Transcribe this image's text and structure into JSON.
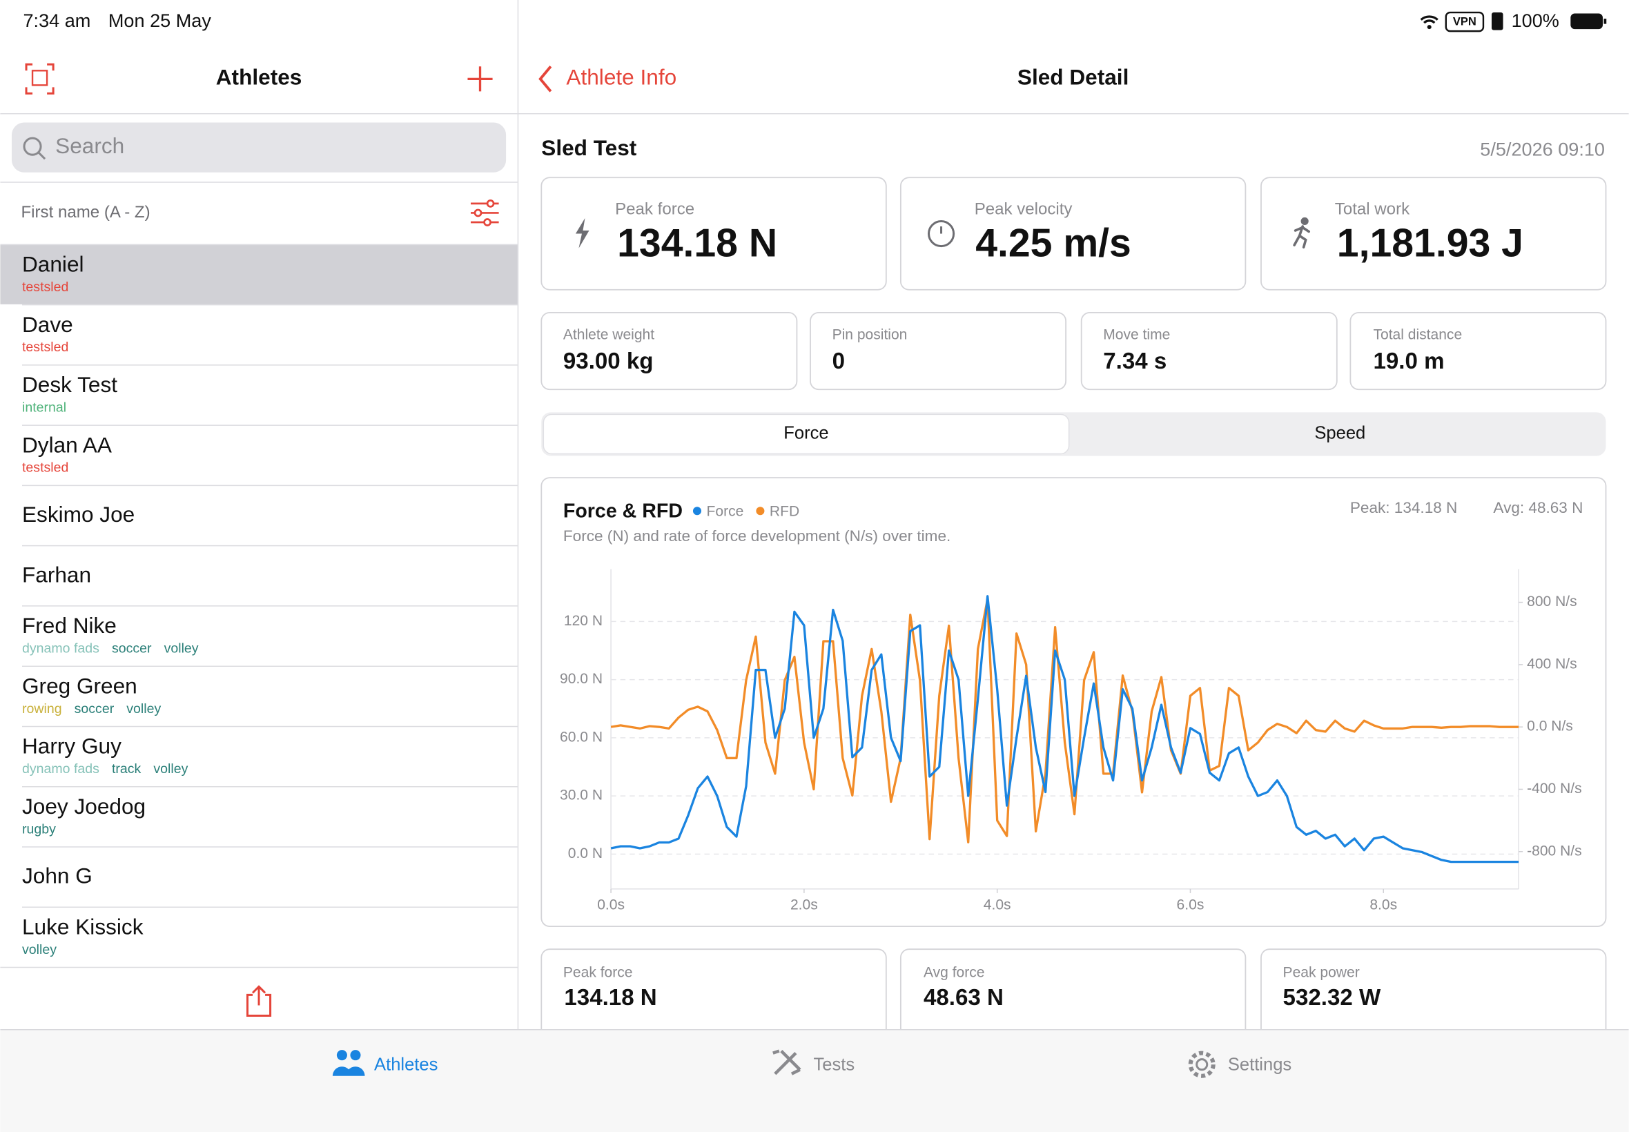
{
  "status_bar": {
    "time": "7:34 am",
    "date": "Mon 25 May",
    "vpn": "VPN",
    "battery": "100%"
  },
  "sidebar": {
    "title": "Athletes",
    "search_placeholder": "Search",
    "sort": "First name (A - Z)",
    "athletes": [
      {
        "name": "Daniel",
        "tags": [
          {
            "text": "testsled",
            "color": "#e5453a"
          }
        ]
      },
      {
        "name": "Dave",
        "tags": [
          {
            "text": "testsled",
            "color": "#e5453a"
          }
        ]
      },
      {
        "name": "Desk Test",
        "tags": [
          {
            "text": "internal",
            "color": "#4fb37a"
          }
        ]
      },
      {
        "name": "Dylan AA",
        "tags": [
          {
            "text": "testsled",
            "color": "#e5453a"
          }
        ]
      },
      {
        "name": "Eskimo Joe",
        "tags": []
      },
      {
        "name": "Farhan",
        "tags": []
      },
      {
        "name": "Fred Nike",
        "tags": [
          {
            "text": "dynamo fads",
            "color": "#86c2b8"
          },
          {
            "text": "soccer",
            "color": "#2a7f78"
          },
          {
            "text": "volley",
            "color": "#2a7f78"
          }
        ]
      },
      {
        "name": "Greg Green",
        "tags": [
          {
            "text": "rowing",
            "color": "#c9b13b"
          },
          {
            "text": "soccer",
            "color": "#2a7f78"
          },
          {
            "text": "volley",
            "color": "#2a7f78"
          }
        ]
      },
      {
        "name": "Harry Guy",
        "tags": [
          {
            "text": "dynamo fads",
            "color": "#86c2b8"
          },
          {
            "text": "track",
            "color": "#2a7f78"
          },
          {
            "text": "volley",
            "color": "#2a7f78"
          }
        ]
      },
      {
        "name": "Joey Joedog",
        "tags": [
          {
            "text": "rugby",
            "color": "#2a7f78"
          }
        ]
      },
      {
        "name": "John G",
        "tags": []
      },
      {
        "name": "Luke Kissick",
        "tags": [
          {
            "text": "volley",
            "color": "#2a7f78"
          }
        ]
      }
    ]
  },
  "detail": {
    "back": "Athlete Info",
    "title": "Sled Detail",
    "test_name": "Sled Test",
    "date": "5/5/2026 09:10",
    "metrics": [
      {
        "label": "Peak force",
        "value": "134.18 N"
      },
      {
        "label": "Peak velocity",
        "value": "4.25 m/s"
      },
      {
        "label": "Total work",
        "value": "1,181.93 J"
      }
    ],
    "stats": [
      {
        "label": "Athlete weight",
        "value": "93.00 kg"
      },
      {
        "label": "Pin position",
        "value": "0"
      },
      {
        "label": "Move time",
        "value": "7.34 s"
      },
      {
        "label": "Total distance",
        "value": "19.0 m"
      }
    ],
    "segments": [
      "Force",
      "Speed"
    ],
    "summary": [
      {
        "label": "Peak force",
        "value": "134.18 N"
      },
      {
        "label": "Avg force",
        "value": "48.63 N"
      },
      {
        "label": "Peak power",
        "value": "532.32 W"
      }
    ]
  },
  "chart_data": {
    "type": "line",
    "title": "Force & RFD",
    "subtitle": "Force (N) and rate of force development (N/s) over time.",
    "annotations": [
      "Peak: 134.18 N",
      "Avg: 48.63 N"
    ],
    "x": [
      0,
      0.1,
      0.2,
      0.3,
      0.4,
      0.5,
      0.6,
      0.7,
      0.8,
      0.9,
      1,
      1.1,
      1.2,
      1.3,
      1.4,
      1.5,
      1.6,
      1.7,
      1.8,
      1.9,
      2,
      2.1,
      2.2,
      2.3,
      2.4,
      2.5,
      2.6,
      2.7,
      2.8,
      2.9,
      3,
      3.1,
      3.2,
      3.3,
      3.4,
      3.5,
      3.6,
      3.7,
      3.8,
      3.9,
      4,
      4.1,
      4.2,
      4.3,
      4.4,
      4.5,
      4.6,
      4.7,
      4.8,
      4.9,
      5,
      5.1,
      5.2,
      5.3,
      5.4,
      5.5,
      5.6,
      5.7,
      5.8,
      5.9,
      6,
      6.1,
      6.2,
      6.3,
      6.4,
      6.5,
      6.6,
      6.7,
      6.8,
      6.9,
      7,
      7.1,
      7.2,
      7.3,
      7.4,
      7.5,
      7.6,
      7.7,
      7.8,
      7.9,
      8,
      8.1,
      8.2,
      8.3,
      8.4,
      8.5,
      8.6,
      8.7,
      8.8,
      8.9,
      9,
      9.1,
      9.2,
      9.3,
      9.4
    ],
    "series": [
      {
        "name": "Force",
        "color": "#1a84e0",
        "axis": "y",
        "values": [
          3,
          4,
          4,
          3,
          4,
          6,
          6,
          8,
          20,
          34,
          40,
          30,
          14,
          9,
          35,
          95,
          95,
          60,
          75,
          125,
          118,
          60,
          75,
          126,
          110,
          50,
          55,
          95,
          103,
          60,
          48,
          115,
          118,
          40,
          45,
          105,
          90,
          30,
          80,
          133,
          85,
          25,
          60,
          92,
          55,
          32,
          105,
          90,
          30,
          60,
          88,
          55,
          38,
          85,
          75,
          38,
          55,
          77,
          55,
          42,
          65,
          62,
          42,
          38,
          52,
          55,
          40,
          30,
          32,
          38,
          30,
          14,
          10,
          12,
          8,
          10,
          4,
          8,
          2,
          8,
          9,
          6,
          3,
          2,
          1,
          -1,
          -3,
          -4,
          -4,
          -4,
          -4,
          -4,
          -4,
          -4,
          -4
        ]
      },
      {
        "name": "RFD",
        "color": "#f28c28",
        "axis": "y2",
        "values": [
          0,
          10,
          0,
          -10,
          5,
          0,
          -10,
          60,
          110,
          130,
          100,
          -20,
          -200,
          -200,
          300,
          580,
          -100,
          -300,
          300,
          450,
          -100,
          -400,
          550,
          550,
          -200,
          -440,
          200,
          500,
          100,
          -480,
          -200,
          720,
          300,
          -720,
          200,
          650,
          -200,
          -740,
          500,
          820,
          -600,
          -700,
          600,
          400,
          -670,
          -300,
          640,
          -100,
          -560,
          300,
          480,
          -300,
          -300,
          330,
          100,
          -420,
          100,
          320,
          -150,
          -300,
          200,
          250,
          -280,
          -250,
          250,
          200,
          -150,
          -100,
          -20,
          20,
          0,
          -40,
          40,
          -20,
          -30,
          40,
          -10,
          -30,
          40,
          10,
          -10,
          -10,
          -10,
          0,
          0,
          0,
          -5,
          0,
          0,
          5,
          5,
          5,
          0,
          0,
          0
        ]
      }
    ],
    "xlim": [
      0,
      9.4
    ],
    "xticks": [
      {
        "value": 0,
        "label": "0.0s"
      },
      {
        "value": 2,
        "label": "2.0s"
      },
      {
        "value": 4,
        "label": "4.0s"
      },
      {
        "value": 6,
        "label": "6.0s"
      },
      {
        "value": 8,
        "label": "8.0s"
      }
    ],
    "ylim": [
      -18,
      147
    ],
    "yticks": [
      {
        "value": 0,
        "label": "0.0 N"
      },
      {
        "value": 30,
        "label": "30.0 N"
      },
      {
        "value": 60,
        "label": "60.0 N"
      },
      {
        "value": 90,
        "label": "90.0 N"
      },
      {
        "value": 120,
        "label": "120 N"
      }
    ],
    "y2lim": [
      -1040,
      1013
    ],
    "y2ticks": [
      {
        "value": -800,
        "label": "-800 N/s"
      },
      {
        "value": -400,
        "label": "-400 N/s"
      },
      {
        "value": 0,
        "label": "0.0 N/s"
      },
      {
        "value": 400,
        "label": "400 N/s"
      },
      {
        "value": 800,
        "label": "800 N/s"
      }
    ],
    "grid": true
  },
  "tab_bar": {
    "tabs": [
      "Athletes",
      "Tests",
      "Settings"
    ]
  }
}
